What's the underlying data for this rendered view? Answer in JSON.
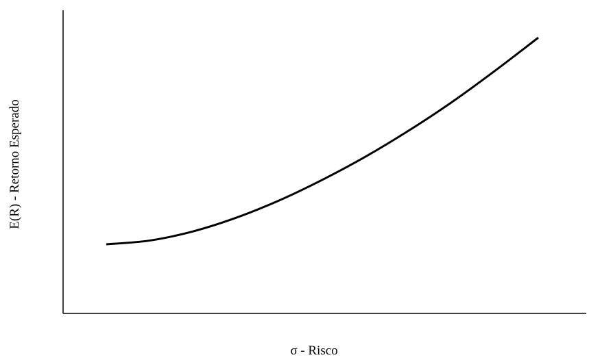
{
  "chart_data": {
    "type": "line",
    "title": "",
    "xlabel": "σ - Risco",
    "ylabel": "E(R) - Retorno Esperado",
    "xlim": [
      0,
      1
    ],
    "ylim": [
      0,
      1
    ],
    "grid": false,
    "ticks": false,
    "series": [
      {
        "x": [
          0.0,
          0.1,
          0.2,
          0.3,
          0.4,
          0.5,
          0.6,
          0.7,
          0.8,
          0.9,
          1.0
        ],
        "y": [
          0.0,
          0.018,
          0.062,
          0.128,
          0.212,
          0.312,
          0.424,
          0.55,
          0.688,
          0.84,
          1.0
        ]
      }
    ],
    "line_color": "#000000"
  }
}
